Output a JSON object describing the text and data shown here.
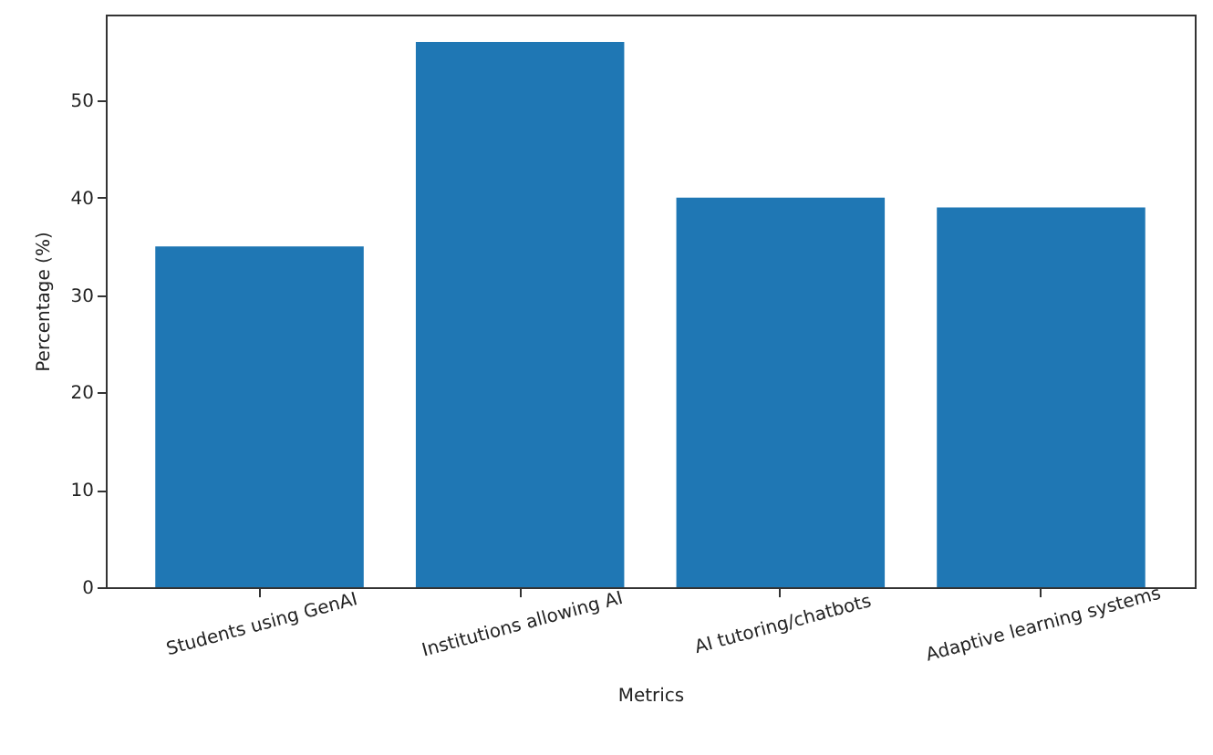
{
  "chart_data": {
    "type": "bar",
    "categories": [
      "Students using GenAI",
      "Institutions allowing AI",
      "AI tutoring/chatbots",
      "Adaptive learning systems"
    ],
    "values": [
      35,
      56,
      40,
      39
    ],
    "color": "#1f77b4",
    "xlabel": "Metrics",
    "ylabel": "Percentage (%)",
    "ylim": [
      0,
      58.8
    ],
    "yticks": [
      0,
      10,
      20,
      30,
      40,
      50
    ],
    "grid": false
  }
}
